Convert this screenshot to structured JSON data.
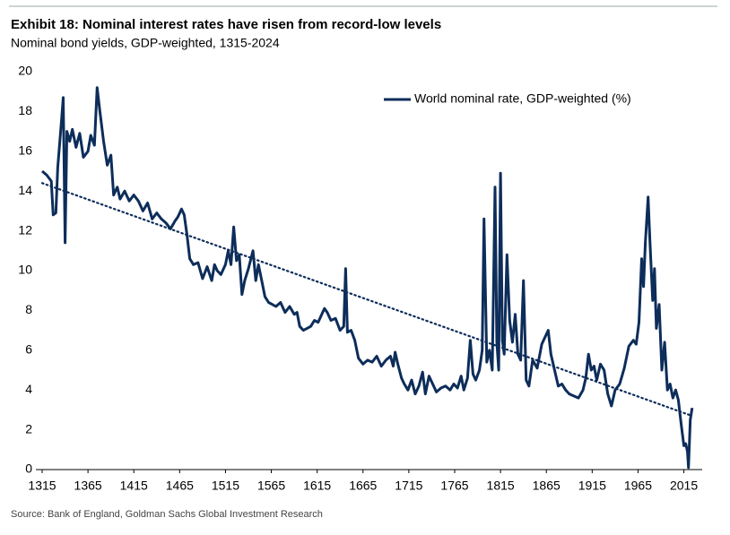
{
  "chart_data": {
    "type": "line",
    "title": "Exhibit 18: Nominal interest rates have risen from record-low levels",
    "subtitle": "Nominal bond yields, GDP-weighted, 1315-2024",
    "source": "Source: Bank of England, Goldman Sachs Global Investment Research",
    "legend": "upper-right",
    "xlim": [
      1315,
      2035
    ],
    "ylim": [
      0,
      20
    ],
    "xticks": [
      1315,
      1365,
      1415,
      1465,
      1515,
      1565,
      1615,
      1665,
      1715,
      1765,
      1815,
      1865,
      1915,
      1965,
      2015
    ],
    "yticks": [
      0,
      2,
      4,
      6,
      8,
      10,
      12,
      14,
      16,
      18,
      20
    ],
    "x": [
      1315,
      1320,
      1325,
      1327,
      1330,
      1332,
      1336,
      1338,
      1340,
      1342,
      1345,
      1348,
      1352,
      1356,
      1360,
      1365,
      1368,
      1372,
      1375,
      1378,
      1382,
      1386,
      1390,
      1393,
      1397,
      1400,
      1405,
      1410,
      1415,
      1420,
      1425,
      1430,
      1435,
      1440,
      1445,
      1450,
      1455,
      1460,
      1463,
      1467,
      1470,
      1473,
      1476,
      1480,
      1485,
      1490,
      1495,
      1500,
      1503,
      1506,
      1510,
      1515,
      1518,
      1521,
      1524,
      1527,
      1530,
      1533,
      1536,
      1540,
      1545,
      1548,
      1551,
      1555,
      1558,
      1562,
      1566,
      1570,
      1575,
      1580,
      1585,
      1590,
      1593,
      1596,
      1600,
      1604,
      1608,
      1612,
      1616,
      1620,
      1623,
      1626,
      1630,
      1635,
      1640,
      1644,
      1646,
      1648,
      1652,
      1656,
      1660,
      1665,
      1670,
      1675,
      1680,
      1685,
      1690,
      1695,
      1698,
      1700,
      1703,
      1707,
      1710,
      1714,
      1718,
      1722,
      1726,
      1730,
      1733,
      1737,
      1741,
      1745,
      1750,
      1755,
      1760,
      1764,
      1768,
      1772,
      1775,
      1779,
      1782,
      1785,
      1788,
      1792,
      1795,
      1797,
      1800,
      1803,
      1806,
      1809,
      1811,
      1813,
      1815,
      1817,
      1819,
      1822,
      1825,
      1828,
      1831,
      1834,
      1837,
      1840,
      1843,
      1846,
      1850,
      1855,
      1860,
      1864,
      1867,
      1870,
      1874,
      1878,
      1882,
      1886,
      1890,
      1895,
      1900,
      1905,
      1908,
      1911,
      1914,
      1917,
      1920,
      1924,
      1928,
      1932,
      1936,
      1940,
      1945,
      1950,
      1955,
      1960,
      1963,
      1966,
      1969,
      1971,
      1973,
      1976,
      1978,
      1981,
      1983,
      1985,
      1988,
      1991,
      1994,
      1997,
      2000,
      2003,
      2006,
      2009,
      2012,
      2015,
      2017,
      2019,
      2020,
      2022,
      2024
    ],
    "series": [
      {
        "name": "World nominal rate, GDP-weighted (%)",
        "color": "#0d2d5a",
        "values": [
          15,
          14.8,
          14.5,
          12.8,
          12.9,
          15.2,
          17.5,
          18.7,
          11.4,
          17,
          16.5,
          17.1,
          16.2,
          16.9,
          15.7,
          16,
          16.8,
          16.3,
          19.2,
          18,
          16.5,
          15.3,
          15.8,
          13.8,
          14.2,
          13.6,
          14,
          13.5,
          13.8,
          13.5,
          13,
          13.4,
          12.6,
          12.9,
          12.6,
          12.4,
          12.1,
          12.5,
          12.7,
          13.1,
          12.8,
          11.8,
          10.6,
          10.3,
          10.4,
          9.6,
          10.2,
          9.5,
          10.3,
          10,
          9.8,
          10.3,
          11,
          10.3,
          12.2,
          10.5,
          10.8,
          8.8,
          9.5,
          10.1,
          11,
          9.5,
          10.3,
          9.4,
          8.7,
          8.4,
          8.3,
          8.2,
          8.4,
          7.9,
          8.2,
          7.8,
          7.9,
          7.2,
          7,
          7.1,
          7.2,
          7.5,
          7.4,
          7.8,
          8.1,
          7.9,
          7.5,
          7.6,
          7,
          7.2,
          10.1,
          6.9,
          7,
          6.5,
          5.6,
          5.3,
          5.5,
          5.4,
          5.7,
          5.2,
          5.5,
          5.7,
          5.2,
          5.9,
          5.3,
          4.6,
          4.3,
          4,
          4.5,
          3.8,
          4.2,
          4.9,
          3.8,
          4.7,
          4.3,
          3.9,
          4.1,
          4.2,
          4,
          4.3,
          4.1,
          4.7,
          4,
          4.6,
          6.5,
          4.8,
          4.5,
          5,
          6,
          12.6,
          5.4,
          6,
          5,
          14.2,
          6.4,
          5,
          14.9,
          6.5,
          5.8,
          10.8,
          7.5,
          6.4,
          7.8,
          5.8,
          5.5,
          9.5,
          4.5,
          4.2,
          5.5,
          5.1,
          6.3,
          6.7,
          7,
          5.8,
          5,
          4.2,
          4.3,
          4,
          3.8,
          3.7,
          3.6,
          4,
          4.6,
          5.8,
          5,
          5.2,
          4.5,
          5.3,
          5,
          3.8,
          3.2,
          4,
          4.3,
          5.1,
          6.2,
          6.5,
          6.3,
          7.4,
          10.6,
          9.2,
          11.4,
          13.7,
          11.5,
          8.5,
          10.1,
          7.1,
          8.3,
          5,
          6.4,
          4,
          4.3,
          3.6,
          4,
          3.5,
          2.3,
          1.2,
          1.3,
          0.9,
          0.1,
          2.5,
          3.1
        ]
      }
    ],
    "trend": {
      "x": [
        1315,
        2024
      ],
      "values": [
        14.4,
        2.7
      ]
    }
  }
}
